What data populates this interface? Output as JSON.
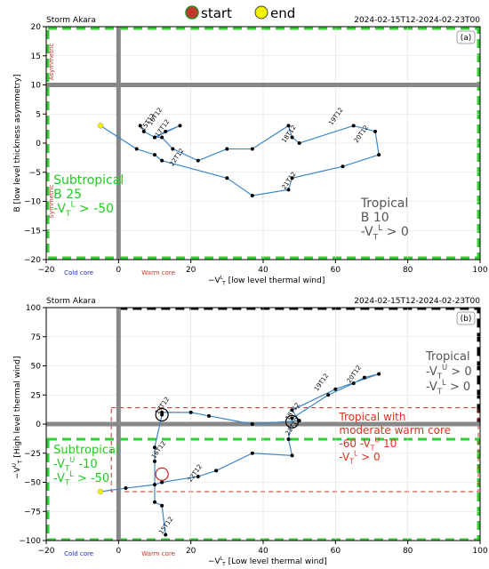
{
  "legend": {
    "start_label": "start",
    "end_label": "end",
    "start_color": "#c0392b",
    "end_color": "#f2f200"
  },
  "chart_data": [
    {
      "type": "scatter",
      "panel": "(a)",
      "storm_label": "Storm Akara",
      "period_label": "2024-02-15T12-2024-02-23T00",
      "xlabel_main": "−V",
      "xlabel_sup": "L",
      "xlabel_sub": "T",
      "xlabel_rest": " [low level thermal wind]",
      "ylabel": "B [low level thickness asymmetry]",
      "xlim": [
        -20,
        100
      ],
      "ylim": [
        -20,
        20
      ],
      "xticks": [
        -20,
        0,
        20,
        40,
        60,
        80,
        100
      ],
      "yticks": [
        -20,
        -15,
        -10,
        -5,
        0,
        5,
        10,
        15,
        20
      ],
      "grid": true,
      "reference_lines": {
        "x": 0,
        "y": 10
      },
      "side_labels": {
        "asymmetric": "Asymmetric",
        "symmetric": "Symmetric"
      },
      "core_labels": {
        "cold": "Cold core",
        "warm": "Warm core"
      },
      "region_text": [
        {
          "lines": [
            "Subtropical",
            "B < 25",
            "-V<sub>T</sub><sup>L</sup> > -50"
          ],
          "color": "#22cc22"
        },
        {
          "lines": [
            "Tropical",
            "B < 10",
            "-V<sub>T</sub><sup>L</sup> > 0"
          ],
          "color": "#555555"
        }
      ],
      "track": {
        "x": [
          -5,
          5,
          10,
          12,
          30,
          37,
          47,
          48,
          62,
          72,
          71,
          65,
          50,
          48,
          47,
          37,
          30,
          22,
          15,
          12,
          10,
          13,
          17,
          10,
          7,
          6
        ],
        "y": [
          3,
          -1,
          -2,
          -3,
          -6,
          -9,
          -8,
          -6,
          -4,
          -2,
          2,
          3,
          0,
          1,
          3,
          -1,
          -1,
          -3,
          -1,
          1,
          1,
          2,
          3,
          1,
          2,
          3
        ]
      },
      "date_labels": [
        {
          "text": "15T12",
          "x": 7,
          "y": 2
        },
        {
          "text": "16T12",
          "x": 9,
          "y": 3
        },
        {
          "text": "17T12",
          "x": 11,
          "y": 1
        },
        {
          "text": "18T12",
          "x": 46,
          "y": 0
        },
        {
          "text": "19T12",
          "x": 59,
          "y": 3
        },
        {
          "text": "20T12",
          "x": 66,
          "y": 0
        },
        {
          "text": "21T12",
          "x": 46,
          "y": -8
        },
        {
          "text": "22T12",
          "x": 15,
          "y": -4
        }
      ]
    },
    {
      "type": "scatter",
      "panel": "(b)",
      "storm_label": "Storm Akara",
      "period_label": "2024-02-15T12-2024-02-23T00",
      "xlabel_main": "−V",
      "xlabel_sup": "L",
      "xlabel_sub": "T",
      "xlabel_rest": " [Low level thermal wind]",
      "ylabel_main": "−V",
      "ylabel_sup": "U",
      "ylabel_sub": "T",
      "ylabel_rest": " [High level thermal wind]",
      "xlim": [
        -20,
        100
      ],
      "ylim": [
        -100,
        100
      ],
      "xticks": [
        -20,
        0,
        20,
        40,
        60,
        80,
        100
      ],
      "yticks": [
        -100,
        -75,
        -50,
        -25,
        0,
        25,
        50,
        75,
        100
      ],
      "grid": true,
      "reference_lines": {
        "x": 0,
        "y": 0
      },
      "core_labels": {
        "cold": "Cold core",
        "warm": "Warm core"
      },
      "region_text": [
        {
          "lines": [
            "Tropical",
            "-V<sub>T</sub><sup>U</sup> > 0",
            "-V<sub>T</sub><sup>L</sup> > 0"
          ],
          "color": "#555555"
        },
        {
          "lines": [
            "Tropical with",
            "moderate warm core",
            "-60 < -V<sub>T</sub><sup>U</sup> < 10",
            "-V<sub>T</sub><sup>L</sup> > 0"
          ],
          "color": "#e03020"
        },
        {
          "lines": [
            "Subtropical",
            "-V<sub>T</sub><sup>U</sup> < -10",
            "-V<sub>T</sub><sup>L</sup> > -50"
          ],
          "color": "#22cc22"
        }
      ],
      "track": {
        "x": [
          -5,
          2,
          10,
          12,
          22,
          27,
          37,
          48,
          47,
          48,
          58,
          65,
          68,
          72,
          60,
          48,
          50,
          37,
          25,
          20,
          12,
          12,
          10,
          10,
          10,
          12,
          13
        ],
        "y": [
          -58,
          -55,
          -52,
          -50,
          -45,
          -40,
          -25,
          -27,
          -13,
          5,
          25,
          35,
          40,
          43,
          30,
          12,
          3,
          0,
          7,
          10,
          10,
          8,
          -20,
          -32,
          -67,
          -70,
          -95
        ]
      },
      "date_labels": [
        {
          "text": "15T12",
          "x": 12,
          "y": -95
        },
        {
          "text": "16T12",
          "x": 10,
          "y": -30
        },
        {
          "text": "17T12",
          "x": 11,
          "y": 8
        },
        {
          "text": "18T12",
          "x": 47,
          "y": 3
        },
        {
          "text": "19T12",
          "x": 55,
          "y": 28
        },
        {
          "text": "20T12",
          "x": 64,
          "y": 35
        },
        {
          "text": "21T12",
          "x": 47,
          "y": -10
        },
        {
          "text": "22T12",
          "x": 20,
          "y": -50
        }
      ],
      "circles": [
        {
          "x": 12,
          "y": -43,
          "color": "#cc2020"
        },
        {
          "x": 12,
          "y": 8,
          "color": "#000000"
        },
        {
          "x": 48,
          "y": 2,
          "color": "#000000"
        }
      ]
    }
  ]
}
